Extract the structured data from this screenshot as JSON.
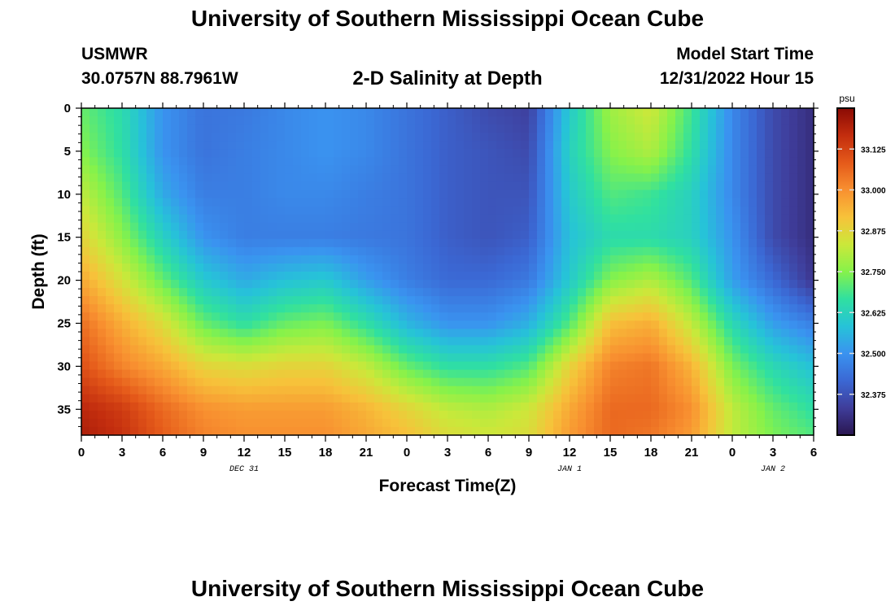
{
  "header": {
    "title": "University of Southern Mississippi Ocean Cube",
    "station": "USMWR",
    "coords": "30.0757N  88.7961W",
    "plot_title": "2-D Salinity at Depth",
    "start_label": "Model Start Time",
    "start_value": "12/31/2022 Hour 15"
  },
  "footer": {
    "title": "University of Southern Mississippi Ocean Cube"
  },
  "chart_data": {
    "type": "heatmap",
    "title": "2-D Salinity at Depth",
    "xlabel": "Forecast Time(Z)",
    "ylabel": "Depth (ft)",
    "x_ticks": [
      "0",
      "3",
      "6",
      "9",
      "12",
      "15",
      "18",
      "21",
      "0",
      "3",
      "6",
      "9",
      "12",
      "15",
      "18",
      "21",
      "0",
      "3",
      "6"
    ],
    "date_labels": [
      {
        "label": "DEC 31",
        "tick_index": 4
      },
      {
        "label": "JAN 1",
        "tick_index": 12
      },
      {
        "label": "JAN 2",
        "tick_index": 17
      }
    ],
    "y_ticks": [
      0,
      5,
      10,
      15,
      20,
      25,
      30,
      35
    ],
    "ylim": [
      38,
      0
    ],
    "colorbar": {
      "unit": "psu",
      "min": 32.25,
      "max": 33.25,
      "ticks": [
        "33.125",
        "33.000",
        "32.875",
        "32.750",
        "32.625",
        "32.500",
        "32.375"
      ],
      "colors": [
        "#2a1650",
        "#3f3d9a",
        "#3b68d4",
        "#3a93f0",
        "#26c3d8",
        "#30e0a0",
        "#86f24a",
        "#cbe83a",
        "#f7c23a",
        "#f89030",
        "#e55a1a",
        "#c32d0e",
        "#8a0a04"
      ]
    },
    "depth_rows_ft": [
      0,
      5,
      10,
      15,
      20,
      25,
      30,
      35,
      38
    ],
    "hours_since_start": [
      0,
      3,
      6,
      9,
      12,
      15,
      18,
      21,
      24,
      27,
      30,
      33,
      36,
      39,
      42,
      45,
      48,
      51,
      54
    ],
    "salinity_psu": [
      [
        32.72,
        32.65,
        32.5,
        32.44,
        32.45,
        32.48,
        32.5,
        32.48,
        32.44,
        32.4,
        32.36,
        32.34,
        32.6,
        32.78,
        32.84,
        32.68,
        32.48,
        32.36,
        32.3
      ],
      [
        32.75,
        32.66,
        32.5,
        32.44,
        32.46,
        32.48,
        32.5,
        32.48,
        32.44,
        32.4,
        32.38,
        32.36,
        32.62,
        32.75,
        32.8,
        32.66,
        32.48,
        32.36,
        32.3
      ],
      [
        32.82,
        32.7,
        32.54,
        32.46,
        32.46,
        32.48,
        32.48,
        32.46,
        32.44,
        32.4,
        32.38,
        32.38,
        32.6,
        32.7,
        32.68,
        32.62,
        32.48,
        32.36,
        32.3
      ],
      [
        32.88,
        32.76,
        32.62,
        32.5,
        32.46,
        32.46,
        32.46,
        32.45,
        32.44,
        32.4,
        32.38,
        32.4,
        32.58,
        32.65,
        32.65,
        32.62,
        32.5,
        32.36,
        32.3
      ],
      [
        32.96,
        32.85,
        32.72,
        32.6,
        32.54,
        32.58,
        32.6,
        32.52,
        32.46,
        32.42,
        32.42,
        32.45,
        32.6,
        32.75,
        32.8,
        32.7,
        32.52,
        32.42,
        32.32
      ],
      [
        33.05,
        32.95,
        32.86,
        32.72,
        32.66,
        32.72,
        32.74,
        32.66,
        32.56,
        32.5,
        32.5,
        32.55,
        32.7,
        32.92,
        32.95,
        32.82,
        32.64,
        32.52,
        32.46
      ],
      [
        33.1,
        33.02,
        32.96,
        32.88,
        32.86,
        32.88,
        32.88,
        32.82,
        32.72,
        32.66,
        32.66,
        32.7,
        32.88,
        33.02,
        33.04,
        32.94,
        32.74,
        32.64,
        32.58
      ],
      [
        33.18,
        33.14,
        33.06,
        33.0,
        32.98,
        32.98,
        32.98,
        32.94,
        32.88,
        32.82,
        32.8,
        32.84,
        32.96,
        33.06,
        33.06,
        33.0,
        32.82,
        32.72,
        32.66
      ],
      [
        33.2,
        33.16,
        33.08,
        33.02,
        33.0,
        33.0,
        33.0,
        32.96,
        32.92,
        32.86,
        32.84,
        32.86,
        32.98,
        33.06,
        33.04,
        32.98,
        32.82,
        32.74,
        32.7
      ]
    ]
  }
}
